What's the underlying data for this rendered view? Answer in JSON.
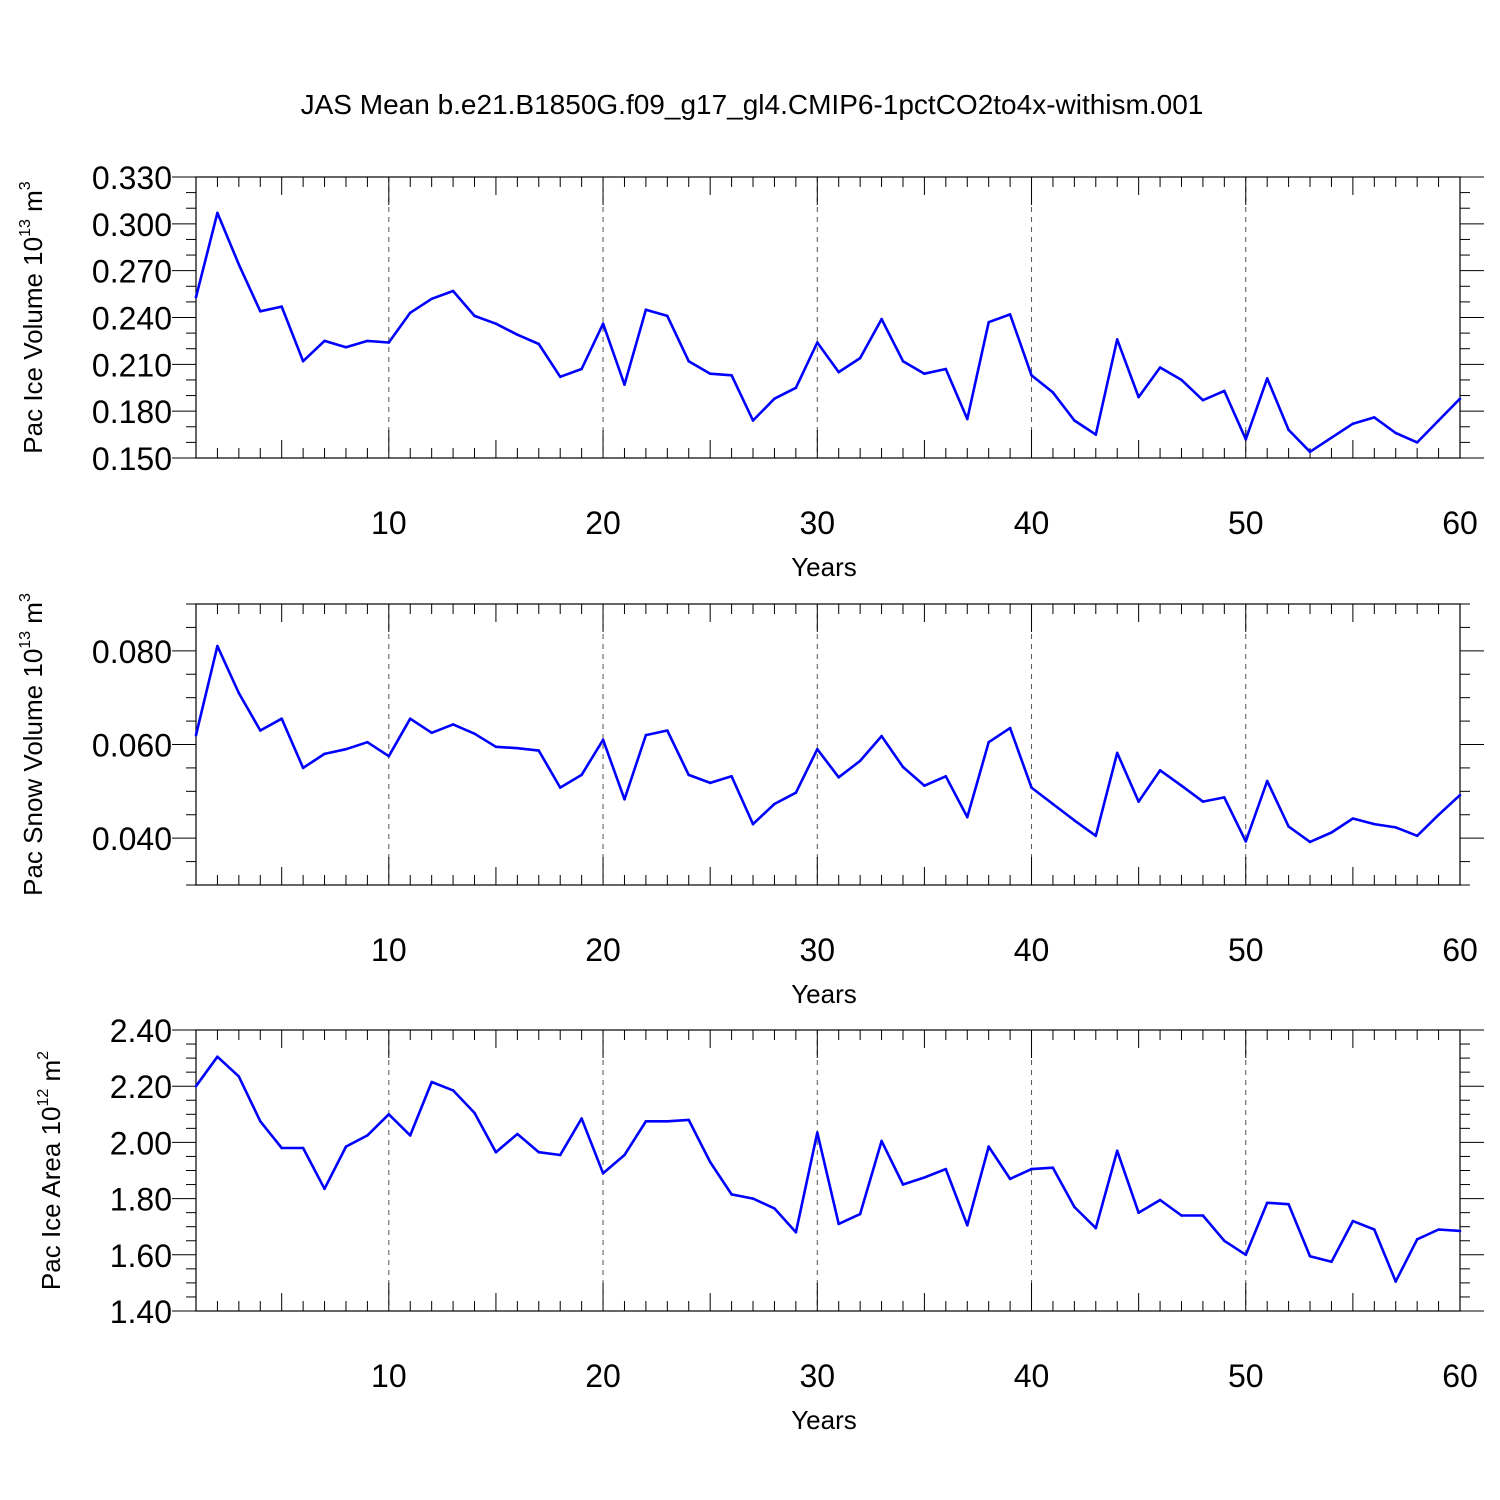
{
  "title": "JAS Mean b.e21.B1850G.f09_g17_gl4.CMIP6-1pctCO2to4x-withism.001",
  "chart_data": [
    {
      "type": "line",
      "ylabel_base": "Pac Ice Volume 10",
      "ylabel_exp": "13",
      "ylabel_unit": " m",
      "ylabel_unit_exp": "3",
      "xlabel": "Years",
      "xlim": [
        1,
        60
      ],
      "ylim": [
        0.15,
        0.33
      ],
      "yticks": [
        0.15,
        0.18,
        0.21,
        0.24,
        0.27,
        0.3,
        0.33
      ],
      "ytick_labels": [
        "0.150",
        "0.180",
        "0.210",
        "0.240",
        "0.270",
        "0.300",
        "0.330"
      ],
      "yminor_step": 0.01,
      "xticks": [
        10,
        20,
        30,
        40,
        50,
        60
      ],
      "xtick_labels": [
        "10",
        "20",
        "30",
        "40",
        "50",
        "60"
      ],
      "x_minor_step": 1,
      "x_mid_step": 5,
      "vgrid": [
        10,
        20,
        30,
        40,
        50
      ],
      "line_color": "#0000ff",
      "x": [
        1,
        2,
        3,
        4,
        5,
        6,
        7,
        8,
        9,
        10,
        11,
        12,
        13,
        14,
        15,
        16,
        17,
        18,
        19,
        20,
        21,
        22,
        23,
        24,
        25,
        26,
        27,
        28,
        29,
        30,
        31,
        32,
        33,
        34,
        35,
        36,
        37,
        38,
        39,
        40,
        41,
        42,
        43,
        44,
        45,
        46,
        47,
        48,
        49,
        50,
        51,
        52,
        53,
        54,
        55,
        56,
        57,
        58,
        59,
        60
      ],
      "y": [
        0.253,
        0.307,
        0.274,
        0.244,
        0.247,
        0.212,
        0.225,
        0.221,
        0.225,
        0.224,
        0.243,
        0.252,
        0.257,
        0.241,
        0.236,
        0.229,
        0.223,
        0.202,
        0.207,
        0.236,
        0.197,
        0.245,
        0.241,
        0.212,
        0.204,
        0.203,
        0.174,
        0.188,
        0.195,
        0.224,
        0.205,
        0.214,
        0.239,
        0.212,
        0.204,
        0.207,
        0.175,
        0.237,
        0.242,
        0.203,
        0.192,
        0.174,
        0.165,
        0.226,
        0.189,
        0.208,
        0.2,
        0.187,
        0.193,
        0.162,
        0.201,
        0.168,
        0.154,
        0.163,
        0.172,
        0.176,
        0.166,
        0.16,
        0.174,
        0.188
      ]
    },
    {
      "type": "line",
      "ylabel_base": "Pac Snow Volume 10",
      "ylabel_exp": "13",
      "ylabel_unit": " m",
      "ylabel_unit_exp": "3",
      "xlabel": "Years",
      "xlim": [
        1,
        60
      ],
      "ylim": [
        0.03,
        0.09
      ],
      "yticks": [
        0.04,
        0.06,
        0.08
      ],
      "ytick_labels": [
        "0.040",
        "0.060",
        "0.080"
      ],
      "yminor_step": 0.005,
      "xticks": [
        10,
        20,
        30,
        40,
        50,
        60
      ],
      "xtick_labels": [
        "10",
        "20",
        "30",
        "40",
        "50",
        "60"
      ],
      "x_minor_step": 1,
      "x_mid_step": 5,
      "vgrid": [
        10,
        20,
        30,
        40,
        50
      ],
      "line_color": "#0000ff",
      "x": [
        1,
        2,
        3,
        4,
        5,
        6,
        7,
        8,
        9,
        10,
        11,
        12,
        13,
        14,
        15,
        16,
        17,
        18,
        19,
        20,
        21,
        22,
        23,
        24,
        25,
        26,
        27,
        28,
        29,
        30,
        31,
        32,
        33,
        34,
        35,
        36,
        37,
        38,
        39,
        40,
        41,
        42,
        43,
        44,
        45,
        46,
        47,
        48,
        49,
        50,
        51,
        52,
        53,
        54,
        55,
        56,
        57,
        58,
        59,
        60
      ],
      "y": [
        0.062,
        0.081,
        0.071,
        0.063,
        0.0655,
        0.055,
        0.058,
        0.059,
        0.0605,
        0.0575,
        0.0655,
        0.0625,
        0.0643,
        0.0623,
        0.0595,
        0.0592,
        0.0587,
        0.0508,
        0.0535,
        0.061,
        0.0483,
        0.062,
        0.063,
        0.0535,
        0.0518,
        0.0532,
        0.043,
        0.0473,
        0.0497,
        0.059,
        0.053,
        0.0565,
        0.0618,
        0.0552,
        0.0512,
        0.0532,
        0.0445,
        0.0605,
        0.0635,
        0.0508,
        0.0473,
        0.0438,
        0.0405,
        0.0582,
        0.0478,
        0.0545,
        0.0512,
        0.0478,
        0.0487,
        0.0393,
        0.0522,
        0.0425,
        0.0392,
        0.0412,
        0.0442,
        0.043,
        0.0423,
        0.0405,
        0.045,
        0.0492
      ]
    },
    {
      "type": "line",
      "ylabel_base": "Pac Ice Area 10",
      "ylabel_exp": "12",
      "ylabel_unit": " m",
      "ylabel_unit_exp": "2",
      "xlabel": "Years",
      "xlim": [
        1,
        60
      ],
      "ylim": [
        1.4,
        2.4
      ],
      "yticks": [
        1.4,
        1.6,
        1.8,
        2.0,
        2.2,
        2.4
      ],
      "ytick_labels": [
        "1.40",
        "1.60",
        "1.80",
        "2.00",
        "2.20",
        "2.40"
      ],
      "yminor_step": 0.05,
      "xticks": [
        10,
        20,
        30,
        40,
        50,
        60
      ],
      "xtick_labels": [
        "10",
        "20",
        "30",
        "40",
        "50",
        "60"
      ],
      "x_minor_step": 1,
      "x_mid_step": 5,
      "vgrid": [
        10,
        20,
        30,
        40,
        50
      ],
      "line_color": "#0000ff",
      "x": [
        1,
        2,
        3,
        4,
        5,
        6,
        7,
        8,
        9,
        10,
        11,
        12,
        13,
        14,
        15,
        16,
        17,
        18,
        19,
        20,
        21,
        22,
        23,
        24,
        25,
        26,
        27,
        28,
        29,
        30,
        31,
        32,
        33,
        34,
        35,
        36,
        37,
        38,
        39,
        40,
        41,
        42,
        43,
        44,
        45,
        46,
        47,
        48,
        49,
        50,
        51,
        52,
        53,
        54,
        55,
        56,
        57,
        58,
        59,
        60
      ],
      "y": [
        2.2,
        2.305,
        2.235,
        2.075,
        1.98,
        1.98,
        1.835,
        1.985,
        2.025,
        2.1,
        2.025,
        2.215,
        2.185,
        2.105,
        1.965,
        2.03,
        1.965,
        1.955,
        2.085,
        1.89,
        1.955,
        2.075,
        2.075,
        2.08,
        1.93,
        1.815,
        1.8,
        1.765,
        1.68,
        2.035,
        1.71,
        1.745,
        2.005,
        1.85,
        1.875,
        1.905,
        1.705,
        1.985,
        1.87,
        1.905,
        1.91,
        1.77,
        1.695,
        1.97,
        1.75,
        1.795,
        1.74,
        1.74,
        1.65,
        1.6,
        1.785,
        1.78,
        1.595,
        1.575,
        1.72,
        1.69,
        1.505,
        1.655,
        1.69,
        1.685
      ]
    }
  ]
}
